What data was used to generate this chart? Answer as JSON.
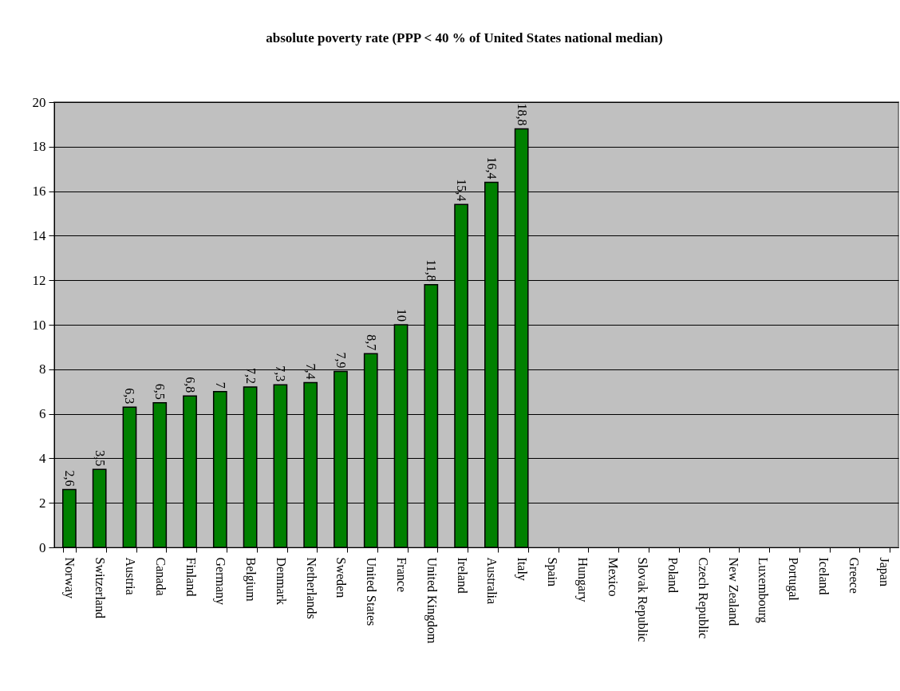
{
  "chart_data": {
    "type": "bar",
    "title": "absolute poverty rate (PPP < 40 % of United States national median)",
    "categories": [
      "Norway",
      "Switzerland",
      "Austria",
      "Canada",
      "Finland",
      "Germany",
      "Belgium",
      "Denmark",
      "Netherlands",
      "Sweden",
      "United States",
      "France",
      "United Kingdom",
      "Ireland",
      "Australia",
      "Italy",
      "Spain",
      "Hungary",
      "Mexico",
      "Slovak Republic",
      "Poland",
      "Czech Republic",
      "New Zealand",
      "Luxembourg",
      "Portugal",
      "Iceland",
      "Greece",
      "Japan"
    ],
    "values": [
      2.6,
      3.5,
      6.3,
      6.5,
      6.8,
      7,
      7.2,
      7.3,
      7.4,
      7.9,
      8.7,
      10,
      11.8,
      15.4,
      16.4,
      18.8,
      null,
      null,
      null,
      null,
      null,
      null,
      null,
      null,
      null,
      null,
      null,
      null
    ],
    "value_labels": [
      "2,6",
      "3,5",
      "6,3",
      "6,5",
      "6,8",
      "7",
      "7,2",
      "7,3",
      "7,4",
      "7,9",
      "8,7",
      "10",
      "11,8",
      "15,4",
      "16,4",
      "18,8",
      null,
      null,
      null,
      null,
      null,
      null,
      null,
      null,
      null,
      null,
      null,
      null
    ],
    "color": "#008000",
    "ylim": [
      0,
      20
    ],
    "yticks": [
      0,
      2,
      4,
      6,
      8,
      10,
      12,
      14,
      16,
      18,
      20
    ],
    "grid": "y"
  }
}
